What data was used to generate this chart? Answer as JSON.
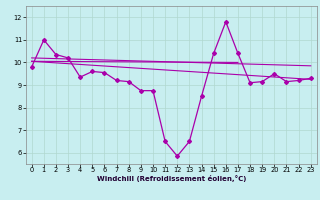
{
  "xlabel": "Windchill (Refroidissement éolien,°C)",
  "background_color": "#c8eef0",
  "line_color": "#aa00aa",
  "xlim": [
    -0.5,
    23.5
  ],
  "ylim": [
    5.5,
    12.5
  ],
  "yticks": [
    6,
    7,
    8,
    9,
    10,
    11,
    12
  ],
  "xticks": [
    0,
    1,
    2,
    3,
    4,
    5,
    6,
    7,
    8,
    9,
    10,
    11,
    12,
    13,
    14,
    15,
    16,
    17,
    18,
    19,
    20,
    21,
    22,
    23
  ],
  "series1_y": [
    9.8,
    11.0,
    10.35,
    10.2,
    9.35,
    9.6,
    9.55,
    9.2,
    9.15,
    8.75,
    8.75,
    6.5,
    5.85,
    6.5,
    8.5,
    10.4,
    11.8,
    10.4,
    9.1,
    9.15,
    9.5,
    9.15,
    9.2,
    9.3
  ],
  "trend1_x": [
    0,
    23
  ],
  "trend1_y": [
    10.2,
    9.85
  ],
  "trend2_x": [
    0,
    23
  ],
  "trend2_y": [
    10.05,
    9.25
  ],
  "trend3_x": [
    0,
    17
  ],
  "trend3_y": [
    10.05,
    10.0
  ],
  "grid_color": "#b0d8d0",
  "tick_label_size": 4.8,
  "xlabel_size": 5.0,
  "xlabel_color": "#220033"
}
